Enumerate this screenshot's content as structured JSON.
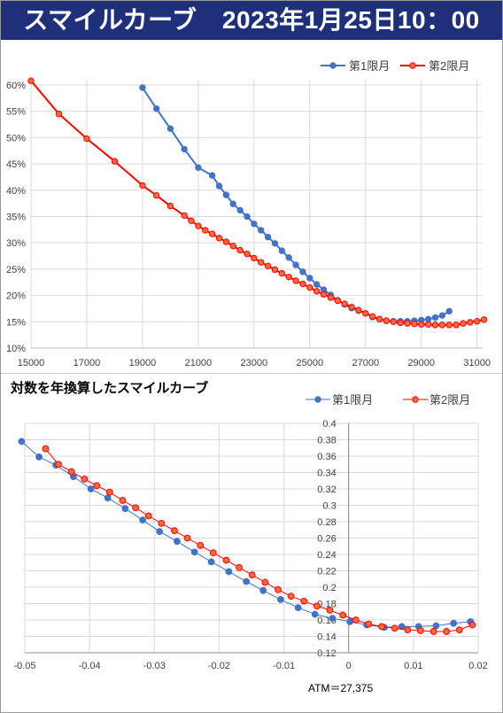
{
  "header": {
    "title": "スマイルカーブ　2023年1月25日10：00"
  },
  "colors": {
    "series1": "#4472c4",
    "series2": "#ff0000",
    "series2_marker_fill": "#ff6a3d",
    "grid": "#d9d9d9",
    "header_bg": "#1f2f7a"
  },
  "chart_data": [
    {
      "type": "line",
      "title": "",
      "x_ticks": [
        "15000",
        "17000",
        "19000",
        "21000",
        "23000",
        "25000",
        "27000",
        "29000",
        "31000"
      ],
      "y_ticks": [
        "10%",
        "15%",
        "20%",
        "25%",
        "30%",
        "35%",
        "40%",
        "45%",
        "50%",
        "55%",
        "60%"
      ],
      "xlim": [
        15000,
        31200
      ],
      "ylim": [
        0.1,
        0.61
      ],
      "grid": "both",
      "legend": "top-right",
      "series": [
        {
          "name": "第1限月",
          "x": [
            19000,
            19500,
            20000,
            20500,
            21000,
            21500,
            21750,
            22000,
            22250,
            22500,
            22750,
            23000,
            23250,
            23500,
            23750,
            24000,
            24250,
            24500,
            24750,
            25000,
            25250,
            25500,
            25750,
            26000,
            26250,
            26500,
            26750,
            27000,
            27250,
            27500,
            27750,
            28000,
            28250,
            28500,
            28750,
            29000,
            29250,
            29500,
            29750,
            30000
          ],
          "y": [
            0.595,
            0.555,
            0.517,
            0.478,
            0.443,
            0.428,
            0.408,
            0.391,
            0.374,
            0.362,
            0.35,
            0.336,
            0.324,
            0.311,
            0.299,
            0.285,
            0.272,
            0.258,
            0.245,
            0.233,
            0.221,
            0.211,
            0.201,
            0.191,
            0.183,
            0.176,
            0.171,
            0.166,
            0.159,
            0.155,
            0.152,
            0.151,
            0.151,
            0.151,
            0.152,
            0.153,
            0.155,
            0.158,
            0.162,
            0.17
          ]
        },
        {
          "name": "第2限月",
          "x": [
            15000,
            16000,
            17000,
            18000,
            19000,
            19500,
            20000,
            20500,
            20750,
            21000,
            21250,
            21500,
            21750,
            22000,
            22250,
            22500,
            22750,
            23000,
            23250,
            23500,
            23750,
            24000,
            24250,
            24500,
            24750,
            25000,
            25250,
            25500,
            25750,
            26000,
            26250,
            26500,
            26750,
            27000,
            27250,
            27500,
            27750,
            28000,
            28250,
            28500,
            28750,
            29000,
            29250,
            29500,
            29750,
            30000,
            30250,
            30500,
            30750,
            31000,
            31250
          ],
          "y": [
            0.608,
            0.545,
            0.498,
            0.455,
            0.409,
            0.39,
            0.37,
            0.352,
            0.342,
            0.332,
            0.324,
            0.317,
            0.309,
            0.302,
            0.294,
            0.286,
            0.279,
            0.271,
            0.263,
            0.256,
            0.249,
            0.242,
            0.235,
            0.228,
            0.222,
            0.215,
            0.208,
            0.202,
            0.196,
            0.19,
            0.184,
            0.178,
            0.172,
            0.166,
            0.16,
            0.155,
            0.152,
            0.15,
            0.148,
            0.147,
            0.146,
            0.145,
            0.145,
            0.144,
            0.144,
            0.144,
            0.144,
            0.147,
            0.149,
            0.151,
            0.154
          ]
        }
      ]
    },
    {
      "type": "line",
      "title": "対数を年換算したスマイルカーブ",
      "x_ticks": [
        "-0.05",
        "-0.04",
        "-0.03",
        "-0.02",
        "-0.01",
        "0",
        "0.01",
        "0.02"
      ],
      "y_ticks": [
        "0.12",
        "0.14",
        "0.16",
        "0.18",
        "0.2",
        "0.22",
        "0.24",
        "0.26",
        "0.28",
        "0.3",
        "0.32",
        "0.34",
        "0.36",
        "0.38",
        "0.4"
      ],
      "xlim": [
        -0.05,
        0.02
      ],
      "ylim": [
        0.12,
        0.4
      ],
      "grid": "both",
      "legend": "top-right",
      "annotation": "ATM＝27,375",
      "series": [
        {
          "name": "第1限月",
          "x": [
            -0.0505,
            -0.0478,
            -0.0452,
            -0.0425,
            -0.0398,
            -0.0372,
            -0.0345,
            -0.0318,
            -0.0292,
            -0.0265,
            -0.0238,
            -0.0212,
            -0.0185,
            -0.0158,
            -0.0132,
            -0.0105,
            -0.0078,
            -0.0052,
            -0.0025,
            0.0002,
            0.0028,
            0.0055,
            0.0082,
            0.0108,
            0.0135,
            0.0162,
            0.0188
          ],
          "y": [
            0.378,
            0.359,
            0.349,
            0.335,
            0.32,
            0.309,
            0.296,
            0.282,
            0.268,
            0.256,
            0.243,
            0.231,
            0.219,
            0.207,
            0.196,
            0.185,
            0.175,
            0.167,
            0.162,
            0.158,
            0.154,
            0.151,
            0.152,
            0.152,
            0.153,
            0.156,
            0.158
          ]
        },
        {
          "name": "第2限月",
          "x": [
            -0.0468,
            -0.0448,
            -0.0428,
            -0.0408,
            -0.0389,
            -0.0369,
            -0.0349,
            -0.0329,
            -0.0309,
            -0.0289,
            -0.0269,
            -0.0249,
            -0.0229,
            -0.0209,
            -0.0189,
            -0.0169,
            -0.0149,
            -0.0129,
            -0.0109,
            -0.0089,
            -0.0069,
            -0.0049,
            -0.0029,
            -0.0009,
            0.0011,
            0.0031,
            0.0051,
            0.0071,
            0.0091,
            0.0111,
            0.0131,
            0.0151,
            0.0171,
            0.0191
          ],
          "y": [
            0.369,
            0.35,
            0.341,
            0.332,
            0.324,
            0.316,
            0.306,
            0.297,
            0.287,
            0.278,
            0.269,
            0.26,
            0.251,
            0.242,
            0.233,
            0.224,
            0.215,
            0.206,
            0.197,
            0.189,
            0.183,
            0.177,
            0.172,
            0.166,
            0.16,
            0.155,
            0.152,
            0.15,
            0.148,
            0.147,
            0.146,
            0.146,
            0.148,
            0.154
          ]
        }
      ]
    }
  ]
}
